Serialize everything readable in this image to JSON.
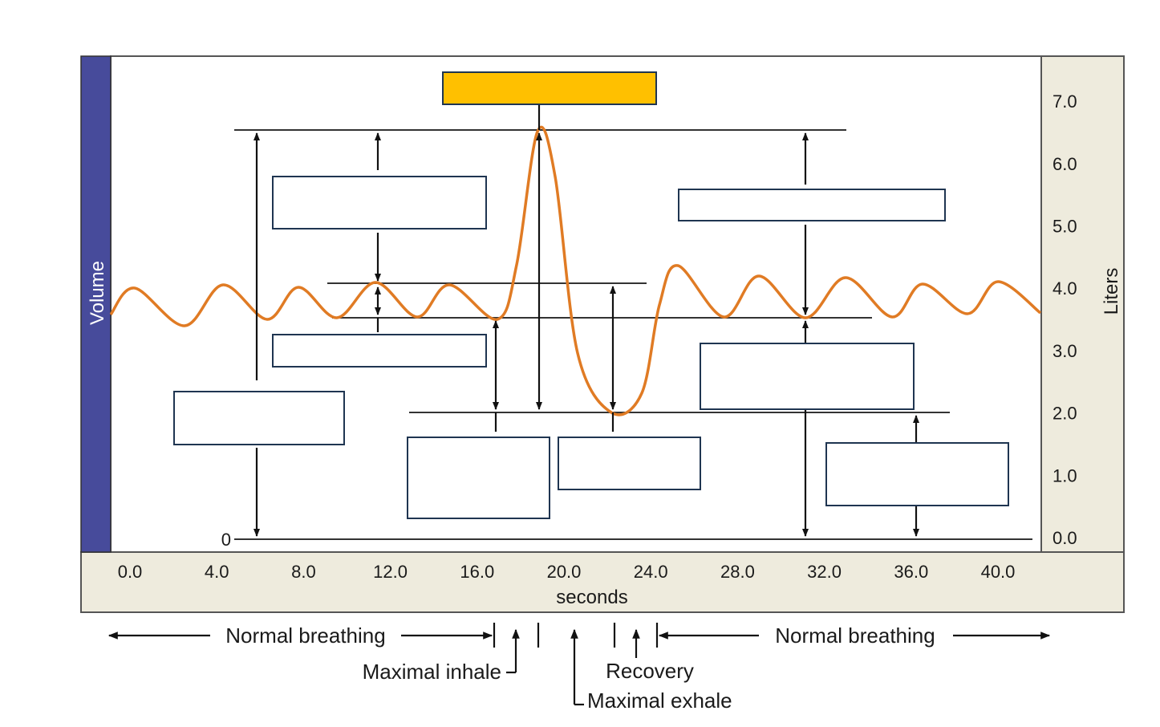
{
  "diagram": {
    "volume_label": "Volume",
    "liters_label": "Liters",
    "zero_label": "0",
    "x_axis_label": "seconds",
    "x_ticks": [
      "0.0",
      "4.0",
      "8.0",
      "12.0",
      "16.0",
      "20.0",
      "24.0",
      "28.0",
      "32.0",
      "36.0",
      "40.0"
    ],
    "y_ticks": [
      "0.0",
      "1.0",
      "2.0",
      "3.0",
      "4.0",
      "5.0",
      "6.0",
      "7.0"
    ],
    "phase_labels": {
      "normal_breathing_left": "Normal breathing",
      "normal_breathing_right": "Normal breathing",
      "maximal_inhale": "Maximal inhale",
      "maximal_exhale": "Maximal exhale",
      "recovery": "Recovery"
    },
    "levels_liters": {
      "max_inhale": 6.5,
      "tidal_top": 4.05,
      "resting_end_expiration": 3.5,
      "max_exhale": 2.0,
      "zero": 0.0
    },
    "colors": {
      "curve": "#E07B24",
      "volume_bar": "#474B9B",
      "axis_panel": "#EEEBDD",
      "highlight_box": "#FFC000",
      "box_border": "#1F3551"
    }
  }
}
